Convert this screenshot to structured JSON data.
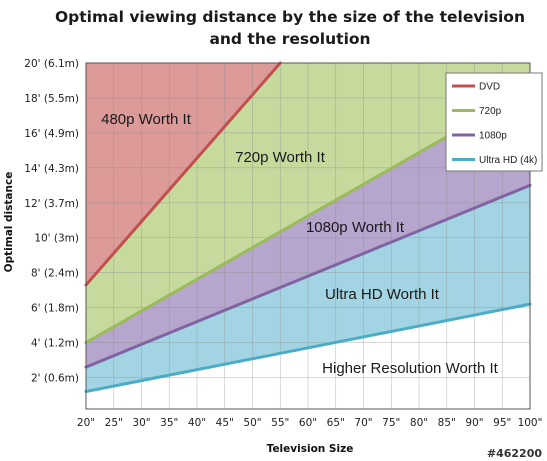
{
  "chart_data": {
    "type": "line",
    "title": "Optimal viewing distance by the size of the television and the resolution",
    "title_lines": [
      "Optimal viewing distance by the size of the television",
      "and the resolution"
    ],
    "xlabel": "Television Size",
    "ylabel": "Optimal distance",
    "x_categories": [
      "20\"",
      "25\"",
      "30\"",
      "35\"",
      "40\"",
      "45\"",
      "50\"",
      "55\"",
      "60\"",
      "65\"",
      "70\"",
      "75\"",
      "80\"",
      "85\"",
      "90\"",
      "95\"",
      "100\""
    ],
    "x_values": [
      20,
      25,
      30,
      35,
      40,
      45,
      50,
      55,
      60,
      65,
      70,
      75,
      80,
      85,
      90,
      95,
      100
    ],
    "y_ticks": [
      {
        "value": 2,
        "label": "2' (0.6m)"
      },
      {
        "value": 4,
        "label": "4' (1.2m)"
      },
      {
        "value": 6,
        "label": "6' (1.8m)"
      },
      {
        "value": 8,
        "label": "8' (2.4m)"
      },
      {
        "value": 10,
        "label": "10' (3m)"
      },
      {
        "value": 12,
        "label": "12' (3.7m)"
      },
      {
        "value": 14,
        "label": "14' (4.3m)"
      },
      {
        "value": 16,
        "label": "16' (4.9m)"
      },
      {
        "value": 18,
        "label": "18' (5.5m)"
      },
      {
        "value": 20,
        "label": "20' (6.1m)"
      }
    ],
    "xlim": [
      20,
      100
    ],
    "ylim": [
      0.2,
      20
    ],
    "grid": true,
    "legend_position": "top-right",
    "series": [
      {
        "name": "DVD",
        "color": "#c0504d",
        "x": [
          20,
          55
        ],
        "values": [
          7.3,
          20.0
        ]
      },
      {
        "name": "720p",
        "color": "#9bbb59",
        "x": [
          20,
          100
        ],
        "values": [
          4.0,
          18.5
        ]
      },
      {
        "name": "1080p",
        "color": "#8064a2",
        "x": [
          20,
          100
        ],
        "values": [
          2.6,
          13.0
        ]
      },
      {
        "name": "Ultra HD (4k)",
        "color": "#4bacc6",
        "x": [
          20,
          100
        ],
        "values": [
          1.2,
          6.2
        ]
      }
    ],
    "regions": [
      {
        "label": "480p Worth It",
        "color": "#dc9a98"
      },
      {
        "label": "720p Worth It",
        "color": "#c7da9e"
      },
      {
        "label": "1080p Worth It",
        "color": "#b6a5cd"
      },
      {
        "label": "Ultra HD Worth It",
        "color": "#a3d4e3"
      },
      {
        "label": "Higher Resolution Worth It",
        "color": "#ffffff"
      }
    ]
  },
  "watermark": "#462200"
}
